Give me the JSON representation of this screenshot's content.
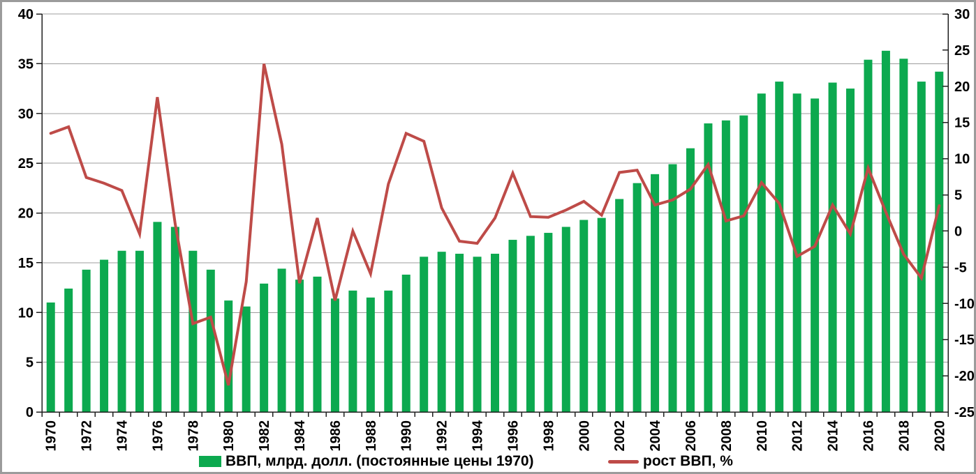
{
  "chart_data": {
    "type": "combo-bar-line",
    "title": "",
    "x": [
      1970,
      1971,
      1972,
      1973,
      1974,
      1975,
      1976,
      1977,
      1978,
      1979,
      1980,
      1981,
      1982,
      1983,
      1984,
      1985,
      1986,
      1987,
      1988,
      1989,
      1990,
      1991,
      1992,
      1993,
      1994,
      1995,
      1996,
      1997,
      1998,
      1999,
      2000,
      2001,
      2002,
      2003,
      2004,
      2005,
      2006,
      2007,
      2008,
      2009,
      2010,
      2011,
      2012,
      2013,
      2014,
      2015,
      2016,
      2017,
      2018,
      2019,
      2020
    ],
    "x_label_every": 2,
    "series": [
      {
        "name": "ВВП, млрд. долл. (постоянные цены 1970)",
        "type": "bar",
        "axis": "left",
        "color": "#0ca94f",
        "values": [
          11.0,
          12.4,
          14.3,
          15.3,
          16.2,
          16.2,
          19.1,
          18.6,
          16.2,
          14.3,
          11.2,
          10.6,
          12.9,
          14.4,
          13.3,
          13.6,
          11.4,
          12.2,
          11.5,
          12.2,
          13.8,
          15.6,
          16.1,
          15.9,
          15.6,
          15.9,
          17.3,
          17.7,
          18.0,
          18.6,
          19.3,
          19.5,
          21.4,
          23.0,
          23.9,
          24.9,
          26.5,
          29.0,
          29.3,
          29.8,
          32.0,
          33.2,
          32.0,
          31.5,
          33.1,
          32.5,
          35.4,
          36.3,
          35.5,
          33.2,
          34.2
        ]
      },
      {
        "name": "рост ВВП, %",
        "type": "line",
        "axis": "right",
        "color": "#be4b48",
        "values": [
          13.5,
          14.4,
          7.4,
          6.6,
          5.6,
          -0.4,
          18.5,
          1.0,
          -12.8,
          -11.9,
          -21.3,
          -7.0,
          23.1,
          12.0,
          -7.2,
          1.8,
          -9.6,
          0.0,
          -5.9,
          6.5,
          13.5,
          12.4,
          3.2,
          -1.4,
          -1.7,
          1.8,
          8.0,
          2.0,
          1.9,
          2.9,
          4.1,
          2.2,
          8.1,
          8.4,
          3.6,
          4.3,
          5.8,
          9.2,
          1.4,
          2.1,
          6.7,
          3.8,
          -3.5,
          -2.1,
          3.6,
          -0.4,
          8.7,
          2.6,
          -3.2,
          -6.5,
          3.5
        ]
      }
    ],
    "left_axis": {
      "min": 0,
      "max": 40,
      "step": 5,
      "tick_labels": [
        "0",
        "5",
        "10",
        "15",
        "20",
        "25",
        "30",
        "35",
        "40"
      ]
    },
    "right_axis": {
      "min": -25,
      "max": 30,
      "step": 5,
      "tick_labels": [
        "-25",
        "-20",
        "-15",
        "-10",
        "-5",
        "0",
        "5",
        "10",
        "15",
        "20",
        "25",
        "30"
      ]
    },
    "gridlines": "horizontal",
    "gridline_color": "#9c9c9c",
    "axis_color": "#1f1f1f",
    "legend_position": "bottom"
  }
}
